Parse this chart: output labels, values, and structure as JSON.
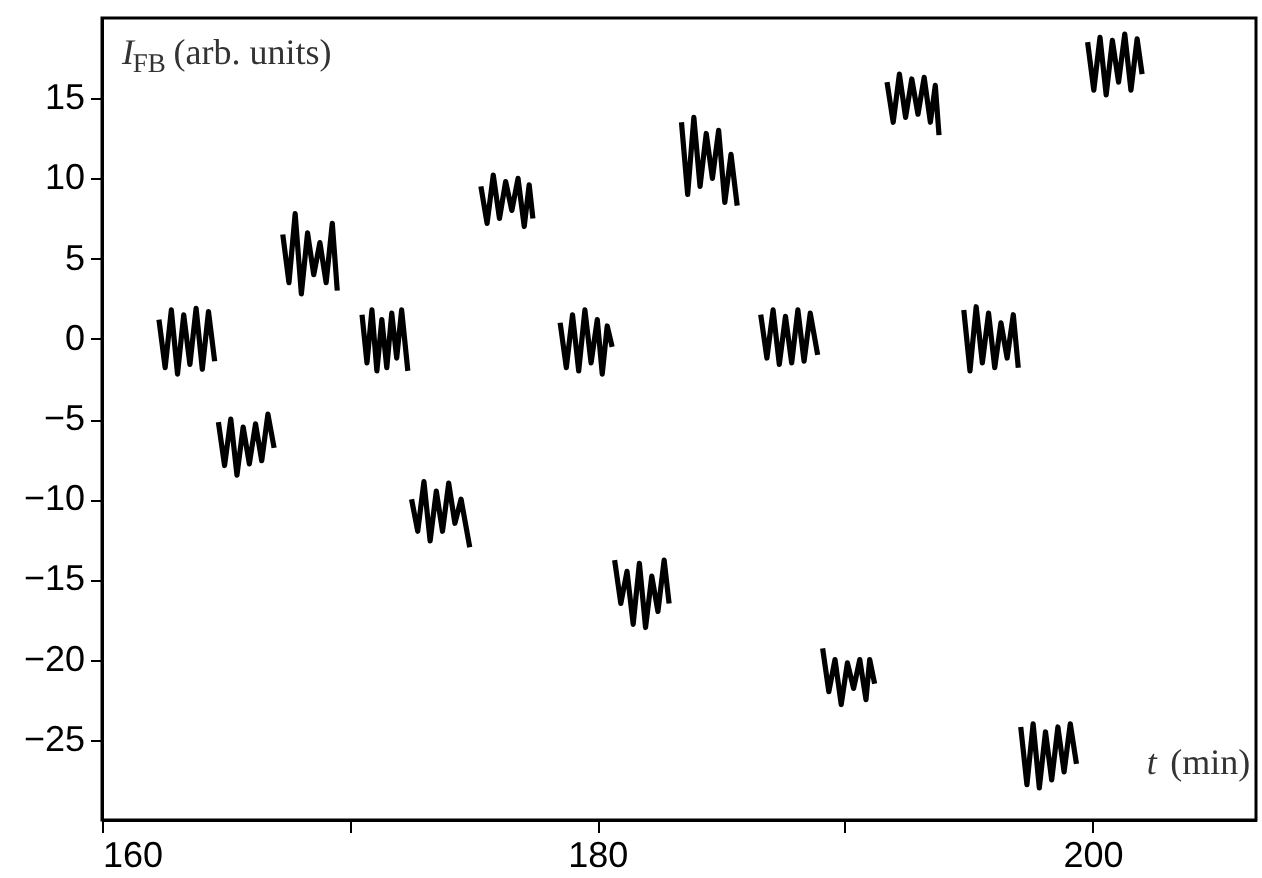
{
  "chart_data": {
    "type": "line",
    "xlabel": "t (min)",
    "ylabel": "I$_{FB}$ (arb. units)",
    "xlim": [
      160,
      206.6
    ],
    "ylim": [
      -30,
      20
    ],
    "xticks": [
      160,
      {
        "value": 170,
        "label": null
      },
      180,
      {
        "value": 190,
        "label": null
      },
      200
    ],
    "yticks": [
      -25,
      -20,
      -15,
      -10,
      -5,
      0,
      5,
      10,
      15
    ],
    "grid": false,
    "marker": "none",
    "line_style": "solid",
    "x": [
      162.3,
      162.55,
      162.8,
      163.05,
      163.3,
      163.55,
      163.8,
      164.05,
      164.3,
      164.55,
      164.65,
      164.7,
      164.95,
      165.2,
      165.45,
      165.7,
      165.95,
      166.2,
      166.45,
      166.7,
      166.95,
      167.1,
      167.3,
      167.55,
      167.8,
      168.05,
      168.3,
      168.55,
      168.8,
      169.05,
      169.3,
      169.5,
      170.0,
      170.5,
      170.7,
      170.9,
      171.1,
      171.3,
      171.5,
      171.7,
      171.9,
      172.1,
      172.35,
      172.45,
      172.5,
      172.75,
      173.0,
      173.25,
      173.5,
      173.75,
      174.0,
      174.25,
      174.5,
      174.85,
      175.1,
      175.3,
      175.55,
      175.8,
      176.05,
      176.3,
      176.55,
      176.8,
      177.05,
      177.25,
      177.4,
      178.0,
      178.5,
      178.75,
      179.0,
      179.25,
      179.5,
      179.75,
      180.0,
      180.2,
      180.4,
      180.6,
      180.65,
      180.7,
      180.95,
      181.2,
      181.45,
      181.7,
      181.95,
      182.2,
      182.45,
      182.7,
      182.9,
      183.1,
      183.4,
      183.65,
      183.9,
      184.15,
      184.4,
      184.65,
      184.9,
      185.15,
      185.4,
      185.65,
      186.1,
      186.6,
      186.85,
      187.1,
      187.35,
      187.6,
      187.85,
      188.1,
      188.35,
      188.6,
      188.9,
      189.0,
      189.1,
      189.35,
      189.6,
      189.85,
      190.1,
      190.35,
      190.6,
      190.85,
      191.0,
      191.2,
      191.5,
      191.7,
      191.95,
      192.2,
      192.45,
      192.7,
      192.95,
      193.2,
      193.45,
      193.65,
      193.8,
      194.3,
      194.8,
      195.05,
      195.3,
      195.55,
      195.8,
      196.05,
      196.3,
      196.55,
      196.8,
      197.0,
      197.05,
      197.1,
      197.35,
      197.6,
      197.85,
      198.1,
      198.35,
      198.6,
      198.85,
      199.1,
      199.35,
      199.6,
      199.8,
      200.05,
      200.3,
      200.55,
      200.8,
      201.05,
      201.3,
      201.55,
      201.8,
      202.0
    ],
    "series": [
      {
        "color": "#000000",
        "values": [
          1.2,
          -1.8,
          1.8,
          -2.2,
          1.5,
          -1.6,
          1.9,
          -1.9,
          1.7,
          -1.4,
          null,
          -5.2,
          -7.9,
          -5.0,
          -8.5,
          -5.5,
          -7.8,
          -5.3,
          -7.6,
          -4.7,
          -6.8,
          null,
          6.5,
          3.5,
          7.8,
          2.8,
          6.6,
          4.0,
          6.0,
          3.5,
          7.2,
          3.0,
          null,
          1.5,
          -1.5,
          1.8,
          -2.0,
          1.2,
          -1.8,
          1.6,
          -1.2,
          1.8,
          -2.0,
          null,
          -10.0,
          -12.0,
          -8.9,
          -12.6,
          -9.5,
          -12.0,
          -9.0,
          -11.5,
          -10.0,
          -13.0,
          null,
          9.5,
          7.2,
          10.2,
          7.5,
          9.8,
          8.0,
          10.0,
          7.0,
          9.6,
          7.5,
          null,
          1.0,
          -1.8,
          1.5,
          -2.0,
          1.8,
          -1.5,
          1.2,
          -2.2,
          0.8,
          -0.5,
          null,
          -13.8,
          -16.5,
          -14.5,
          -17.8,
          -14.0,
          -18.0,
          -14.8,
          -17.0,
          -13.8,
          -16.5,
          null,
          13.5,
          9.0,
          13.8,
          9.5,
          12.8,
          10.0,
          13.0,
          8.5,
          11.5,
          8.3,
          null,
          1.5,
          -1.2,
          1.8,
          -1.6,
          1.4,
          -1.5,
          1.8,
          -1.4,
          1.6,
          -1.0,
          null,
          -19.3,
          -22.0,
          -20.0,
          -22.8,
          -20.2,
          -21.8,
          -20.0,
          -22.5,
          -20.0,
          -21.5,
          null,
          16.0,
          13.5,
          16.5,
          13.8,
          16.2,
          14.0,
          16.3,
          13.5,
          15.8,
          12.7,
          null,
          1.8,
          -2.0,
          2.0,
          -1.5,
          1.6,
          -1.8,
          1.0,
          -1.2,
          1.5,
          -1.8,
          null,
          -24.2,
          -27.8,
          -24.0,
          -28.0,
          -24.5,
          -27.5,
          -24.2,
          -27.0,
          -24.0,
          -26.5,
          null,
          18.5,
          15.5,
          18.8,
          15.2,
          18.6,
          16.0,
          19.0,
          15.5,
          18.7,
          16.5
        ]
      }
    ]
  }
}
